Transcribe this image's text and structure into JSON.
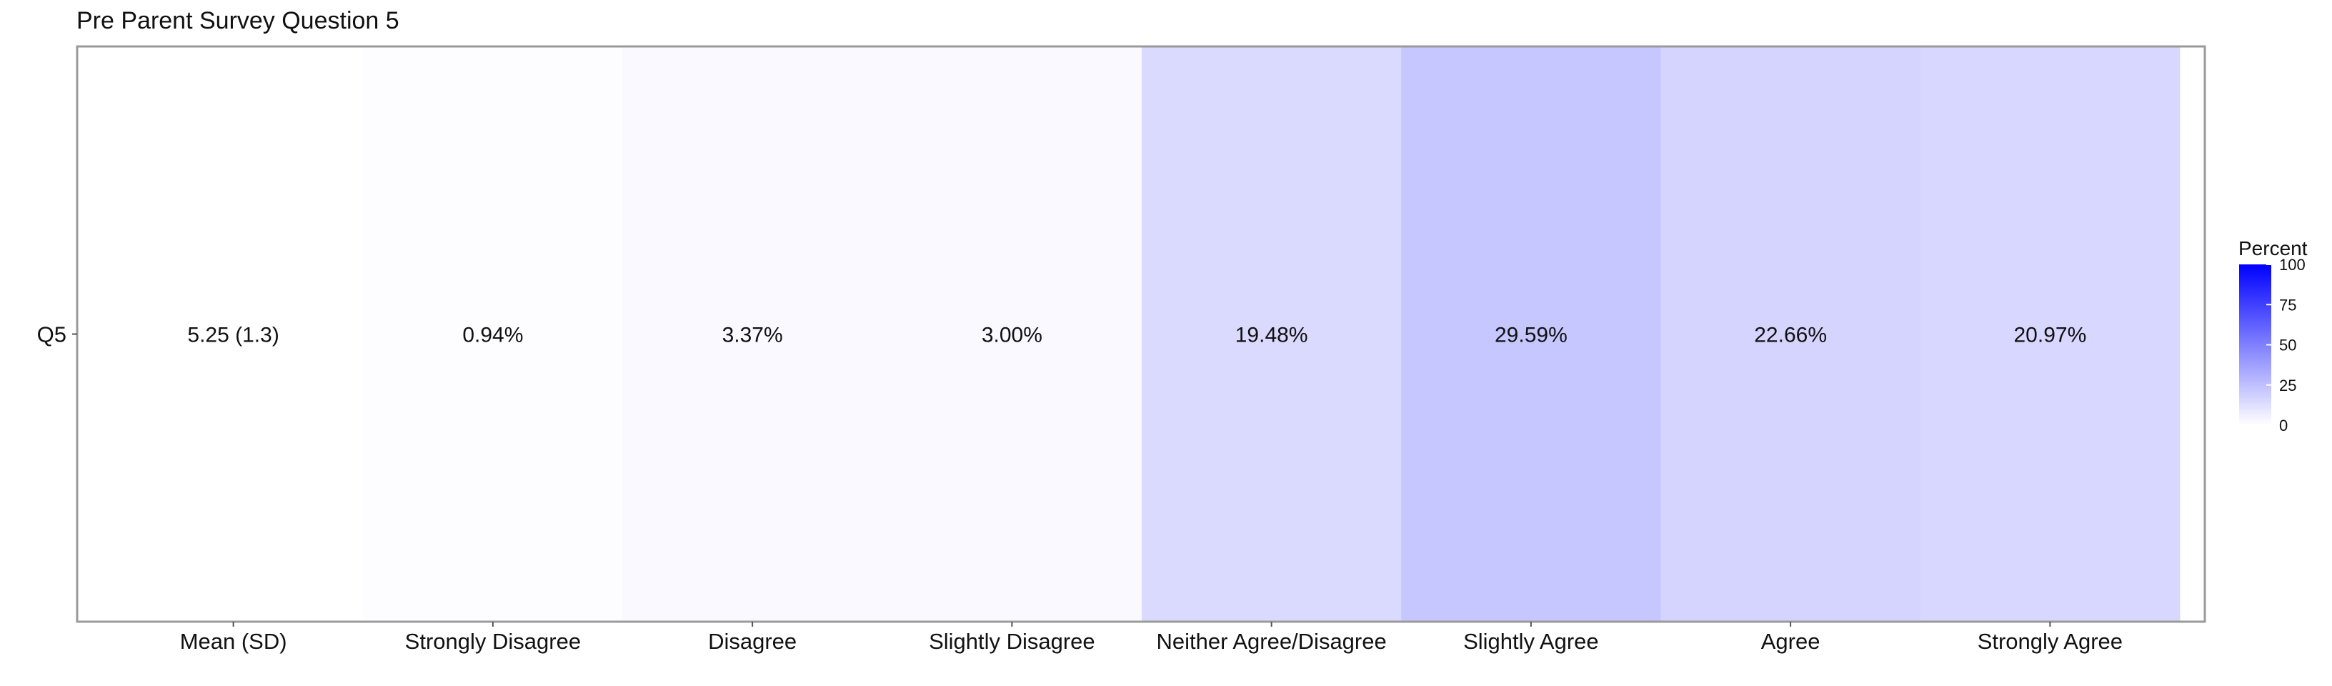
{
  "chart_data": {
    "type": "heatmap",
    "title": "Pre Parent Survey Question 5",
    "xlabel": "",
    "ylabel": "",
    "rows": [
      "Q5"
    ],
    "columns": [
      "Mean (SD)",
      "Strongly Disagree",
      "Disagree",
      "Slightly Disagree",
      "Neither Agree/Disagree",
      "Slightly Agree",
      "Agree",
      "Strongly Agree"
    ],
    "cells": [
      {
        "row": "Q5",
        "column": "Mean (SD)",
        "label": "5.25 (1.3)",
        "percent": 0
      },
      {
        "row": "Q5",
        "column": "Strongly Disagree",
        "label": "0.94%",
        "percent": 0.94
      },
      {
        "row": "Q5",
        "column": "Disagree",
        "label": "3.37%",
        "percent": 3.37
      },
      {
        "row": "Q5",
        "column": "Slightly Disagree",
        "label": "3.00%",
        "percent": 3.0
      },
      {
        "row": "Q5",
        "column": "Neither Agree/Disagree",
        "label": "19.48%",
        "percent": 19.48
      },
      {
        "row": "Q5",
        "column": "Slightly Agree",
        "label": "29.59%",
        "percent": 29.59
      },
      {
        "row": "Q5",
        "column": "Agree",
        "label": "22.66%",
        "percent": 22.66
      },
      {
        "row": "Q5",
        "column": "Strongly Agree",
        "label": "20.97%",
        "percent": 20.97
      }
    ],
    "legend": {
      "title": "Percent",
      "ticks": [
        0,
        25,
        50,
        75,
        100
      ],
      "range": [
        0,
        100
      ],
      "low_color": "#ffffff",
      "high_color": "#0000ff",
      "placement": "right"
    },
    "grid": false
  }
}
